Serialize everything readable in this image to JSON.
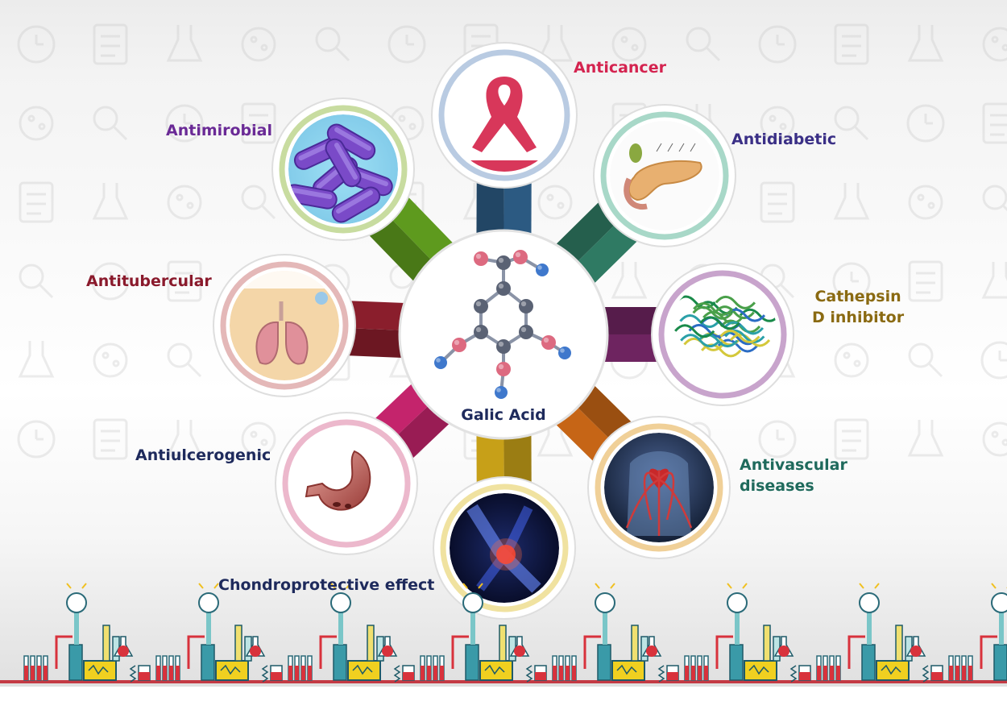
{
  "center": {
    "label": "Galic Acid",
    "atom_colors": {
      "carbon": "#5a6274",
      "oxygen": "#dd6a80",
      "hydrogen": "#3f78cc"
    }
  },
  "nodes": [
    {
      "key": "anticancer",
      "label": "Anticancer",
      "color": "#d4234f",
      "arm_color": "#2c5a82",
      "icon": "awareness-ribbon-icon"
    },
    {
      "key": "antidiabetic",
      "label": "Antidiabetic",
      "color": "#3a2f86",
      "arm_color": "#2f7a63",
      "icon": "pancreas-icon"
    },
    {
      "key": "cathepsin",
      "label": "Cathepsin\nD inhibitor",
      "color": "#8a6a12",
      "arm_color": "#6e2460",
      "icon": "protein-structure-icon"
    },
    {
      "key": "antivascular",
      "label": "Antivascular\ndiseases",
      "color": "#1f6a5c",
      "arm_color": "#c66516",
      "icon": "cardiovascular-system-icon"
    },
    {
      "key": "chondroprotective",
      "label": "Chondroprotective effect",
      "color": "#1e2a5c",
      "arm_color": "#c7a018",
      "icon": "knee-joint-icon"
    },
    {
      "key": "antiulcerogenic",
      "label": "Antiulcerogenic",
      "color": "#1e2a5c",
      "arm_color": "#c4246c",
      "icon": "stomach-icon"
    },
    {
      "key": "antitubercular",
      "label": "Antitubercular",
      "color": "#8a1a2c",
      "arm_color": "#8a1e2c",
      "icon": "lungs-icon"
    },
    {
      "key": "antimicrobial",
      "label": "Antimirobial",
      "color": "#6a2a96",
      "arm_color": "#5e9a1e",
      "icon": "bacteria-icon"
    }
  ]
}
